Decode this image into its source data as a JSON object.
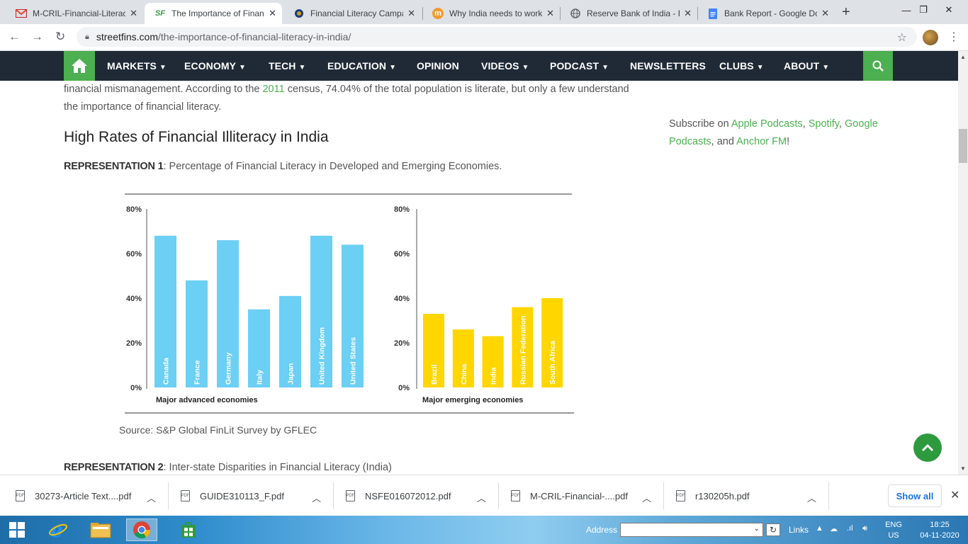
{
  "browser": {
    "tabs": [
      {
        "title": "M-CRIL-Financial-Literac",
        "favicon": "gmail-icon"
      },
      {
        "title": "The Importance of Finan",
        "favicon": "streetfins-icon",
        "favicon_text": "SF"
      },
      {
        "title": "Financial Literacy Campa",
        "favicon": "globe-icon"
      },
      {
        "title": "Why India needs to work",
        "favicon": "m-icon",
        "favicon_text": "m"
      },
      {
        "title": "Reserve Bank of India - F",
        "favicon": "globe-icon"
      },
      {
        "title": "Bank Report - Google Do",
        "favicon": "docs-icon"
      }
    ],
    "url_host": "streetfins.com",
    "url_path": "/the-importance-of-financial-literacy-in-india/"
  },
  "site_nav": {
    "items": [
      {
        "label": "MARKETS",
        "caret": true
      },
      {
        "label": "ECONOMY",
        "caret": true
      },
      {
        "label": "TECH",
        "caret": true
      },
      {
        "label": "EDUCATION",
        "caret": true
      },
      {
        "label": "OPINION",
        "caret": false
      },
      {
        "label": "VIDEOS",
        "caret": true
      },
      {
        "label": "PODCAST",
        "caret": true
      },
      {
        "label": "NEWSLETTERS",
        "caret": false
      },
      {
        "label": "CLUBS",
        "caret": true
      },
      {
        "label": "ABOUT",
        "caret": true
      }
    ],
    "accent": "#4caf50",
    "background": "#1f2a36"
  },
  "article": {
    "para_part1": "financial mismanagement. According to the ",
    "para_link": "2011",
    "para_part2": " census, 74.04% of the total population is literate, but only a few understand the importance of financial literacy.",
    "heading": "High Rates of Financial Illiteracy in India",
    "rep1_label": "REPRESENTATION 1",
    "rep1_text": ": Percentage of Financial Literacy in Developed and Emerging Economies.",
    "source": "Source: S&P Global FinLit Survey by GFLEC",
    "rep2_label": "REPRESENTATION 2",
    "rep2_text": ": Inter-state Disparities in Financial Literacy (India)"
  },
  "sidebar": {
    "prefix": "Subscribe on ",
    "link1": "Apple Podcasts",
    "sep1": ", ",
    "link2": "Spotify",
    "sep2": ", ",
    "link3": "Google Podcasts",
    "sep3": ", and ",
    "link4": "Anchor FM",
    "suffix": "!"
  },
  "chart_data": [
    {
      "type": "bar",
      "title": "",
      "xlabel": "Major advanced economies",
      "ylabel": "",
      "ylim": [
        0,
        80
      ],
      "yticks": [
        "0%",
        "20%",
        "40%",
        "60%",
        "80%"
      ],
      "categories": [
        "Canada",
        "France",
        "Germany",
        "Italy",
        "Japan",
        "United Kingdom",
        "United States"
      ],
      "values": [
        68,
        48,
        66,
        35,
        41,
        68,
        64
      ],
      "color": "#6ccff4",
      "grid": false
    },
    {
      "type": "bar",
      "title": "",
      "xlabel": "Major emerging economies",
      "ylabel": "",
      "ylim": [
        0,
        80
      ],
      "yticks": [
        "0%",
        "20%",
        "40%",
        "60%",
        "80%"
      ],
      "categories": [
        "Brazil",
        "China",
        "India",
        "Russian Federation",
        "South Africa"
      ],
      "values": [
        33,
        26,
        23,
        36,
        40
      ],
      "color": "#ffd600",
      "grid": false
    }
  ],
  "downloads": {
    "items": [
      {
        "name": "30273-Article Text....pdf"
      },
      {
        "name": "GUIDE310113_F.pdf"
      },
      {
        "name": "NSFE016072012.pdf"
      },
      {
        "name": "M-CRIL-Financial-....pdf"
      },
      {
        "name": "r130205h.pdf"
      }
    ],
    "show_all": "Show all"
  },
  "taskbar": {
    "address_label": "Address",
    "links_label": "Links",
    "lang_line1": "ENG",
    "lang_line2": "US",
    "time": "18:25",
    "date": "04-11-2020"
  }
}
